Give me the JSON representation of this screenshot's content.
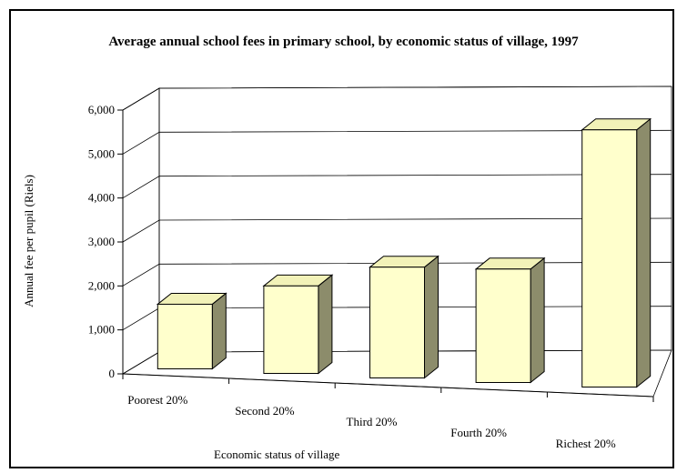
{
  "chart_data": {
    "type": "bar",
    "title": "Average annual school fees in primary school, by economic status of village, 1997",
    "xlabel": "Economic status of village",
    "ylabel": "Annual fee per pupil (Riels)",
    "categories": [
      "Poorest 20%",
      "Second 20%",
      "Third 20%",
      "Fourth 20%",
      "Richest 20%"
    ],
    "values": [
      1470,
      1990,
      2520,
      2580,
      5850
    ],
    "ylim": [
      0,
      6000
    ],
    "yticks": [
      "0",
      "1,000",
      "2,000",
      "3,000",
      "4,000",
      "5,000",
      "6,000"
    ],
    "three_d": true,
    "grid": true,
    "legend": "none"
  },
  "colors": {
    "bar_front": "#FFFFCC",
    "bar_top": "#F2F2B8",
    "bar_side": "#8C8C6B",
    "grid": "#000000",
    "frame": "#000000"
  }
}
